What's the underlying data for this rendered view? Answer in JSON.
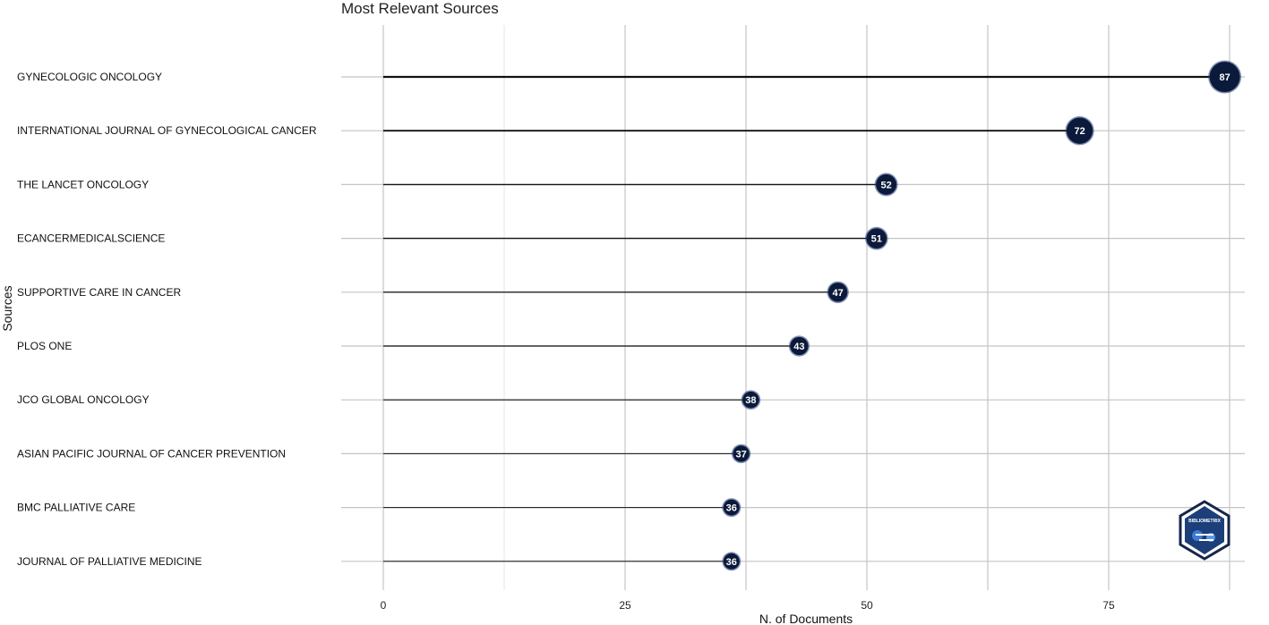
{
  "chart_data": {
    "type": "lollipop",
    "title": "Most Relevant Sources",
    "xlabel": "N. of Documents",
    "ylabel": "Sources",
    "xlim": [
      0,
      90
    ],
    "xticks": [
      0,
      25,
      50,
      75
    ],
    "grid": true,
    "categories": [
      "GYNECOLOGIC ONCOLOGY",
      "INTERNATIONAL JOURNAL OF GYNECOLOGICAL CANCER",
      "THE LANCET ONCOLOGY",
      "ECANCERMEDICALSCIENCE",
      "SUPPORTIVE CARE IN CANCER",
      "PLOS ONE",
      "JCO GLOBAL ONCOLOGY",
      "ASIAN PACIFIC JOURNAL OF CANCER PREVENTION",
      "BMC PALLIATIVE CARE",
      "JOURNAL OF PALLIATIVE MEDICINE"
    ],
    "values": [
      87,
      72,
      52,
      51,
      47,
      43,
      38,
      37,
      36,
      36
    ],
    "point_color": "#0b1a3a",
    "logo_text": "BIBLIOMETRIX"
  }
}
